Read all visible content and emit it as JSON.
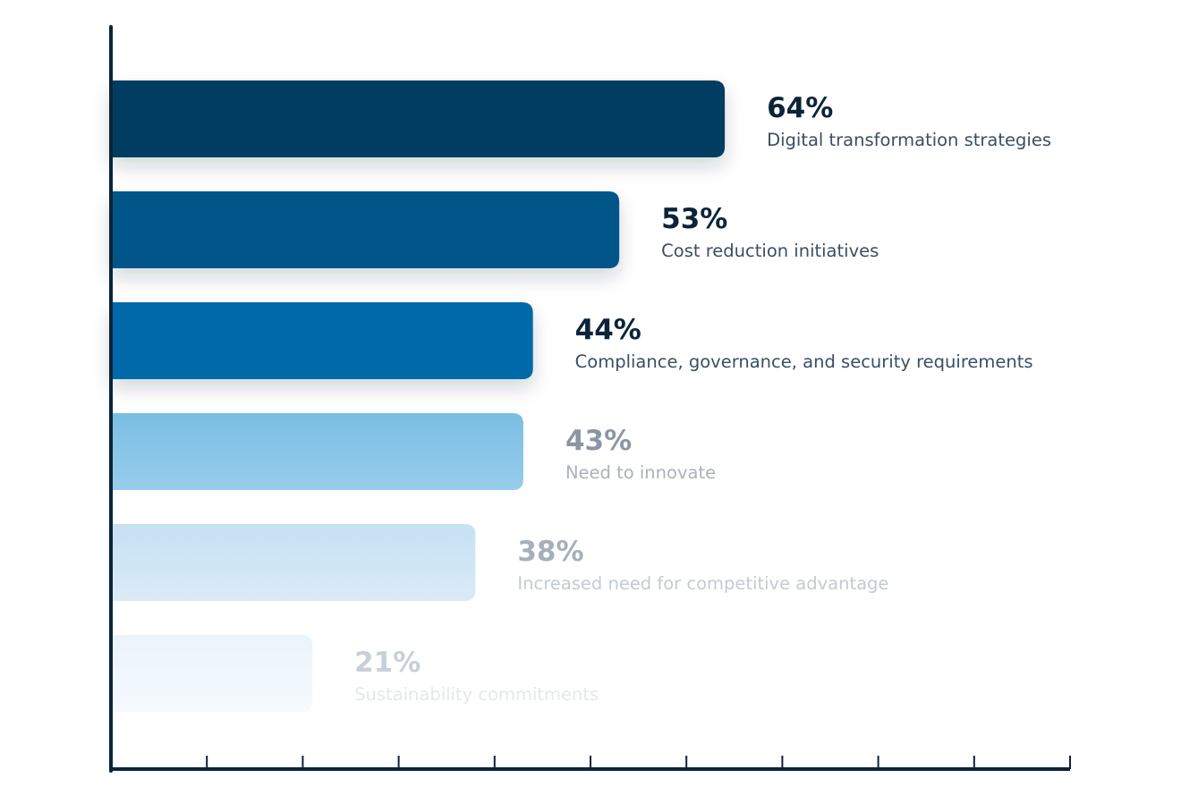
{
  "chart_data": {
    "type": "bar",
    "orientation": "horizontal",
    "categories": [
      "Digital transformation strategies",
      "Cost reduction initiatives",
      "Compliance, governance, and security requirements",
      "Need to innovate",
      "Increased need for competitive advantage",
      "Sustainability commitments"
    ],
    "values": [
      64,
      53,
      44,
      43,
      38,
      21
    ],
    "value_labels": [
      "64%",
      "53%",
      "44%",
      "43%",
      "38%",
      "21%"
    ],
    "xlim": [
      0,
      100
    ],
    "x_tick_count": 10,
    "grid": false,
    "legend": "none",
    "colors": {
      "bars_top": [
        "#003e61",
        "#005688",
        "#0569a8",
        "#7abee3",
        "#c5e1f3",
        "#eaf4fc"
      ],
      "bars_bottom": [
        "#003e61",
        "#005688",
        "#0569a8",
        "#97cdeb",
        "#daebf7",
        "#f6fafe"
      ],
      "value_text": [
        "#0b2439",
        "#0b2439",
        "#0b2439",
        "#8a96a3",
        "#a4b0ba",
        "#c7d0d8"
      ],
      "label_text": [
        "#3a4f63",
        "#3a4f63",
        "#3a4f63",
        "#a9b2bb",
        "#c3cbd2",
        "#e3e8ec"
      ],
      "axis": "#0b2439"
    }
  }
}
